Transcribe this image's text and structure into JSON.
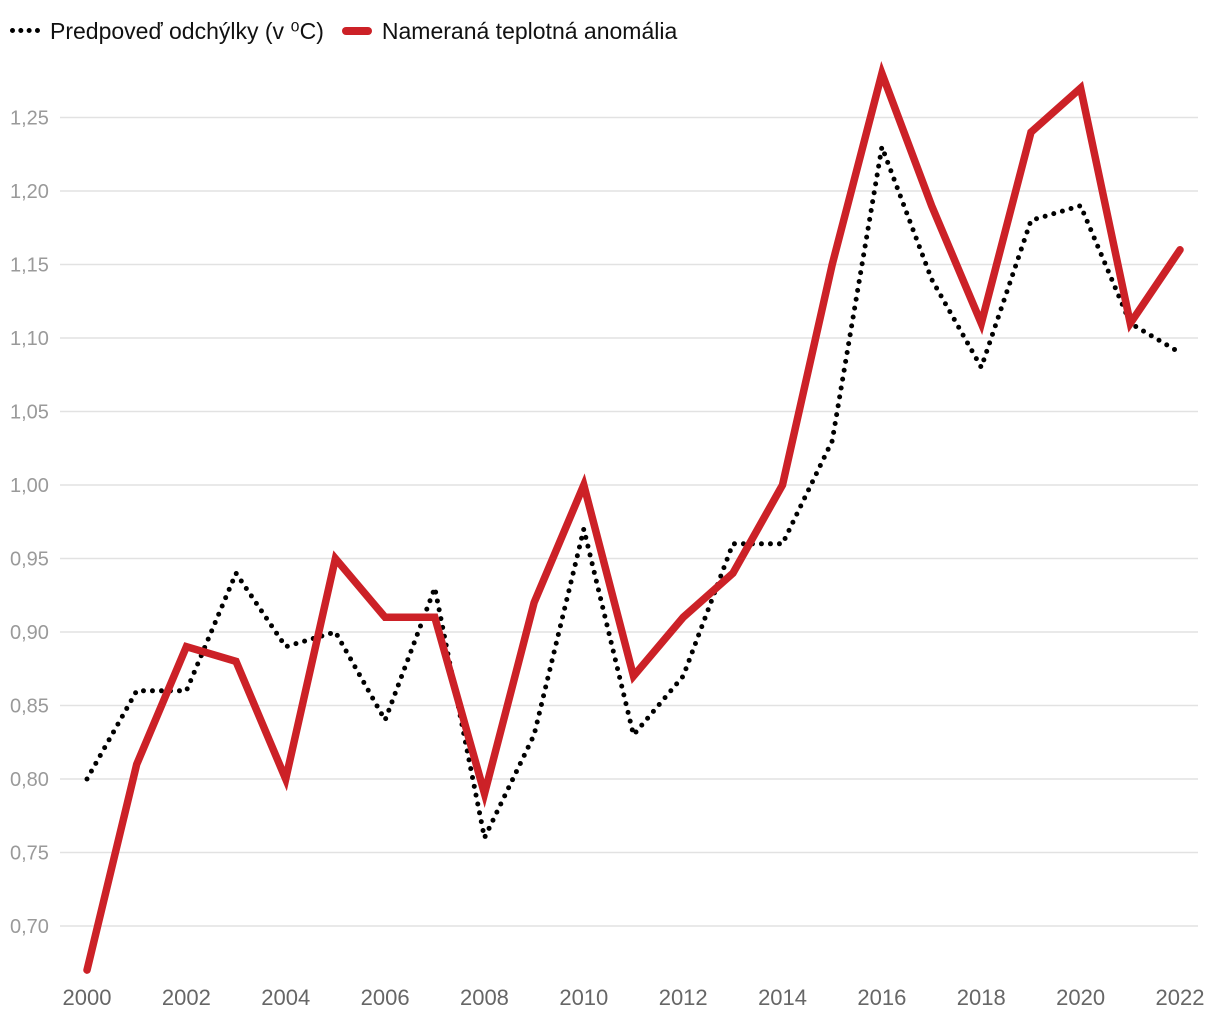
{
  "chart_data": {
    "type": "line",
    "title": "",
    "xlabel": "",
    "ylabel": "",
    "x": [
      2000,
      2001,
      2002,
      2003,
      2004,
      2005,
      2006,
      2007,
      2008,
      2009,
      2010,
      2011,
      2012,
      2013,
      2014,
      2015,
      2016,
      2017,
      2018,
      2019,
      2020,
      2021,
      2022
    ],
    "xticks": [
      "2000",
      "2002",
      "2004",
      "2006",
      "2008",
      "2010",
      "2012",
      "2014",
      "2016",
      "2018",
      "2020",
      "2022"
    ],
    "yticks": [
      "0,70",
      "0,75",
      "0,80",
      "0,85",
      "0,90",
      "0,95",
      "1,00",
      "1,05",
      "1,10",
      "1,15",
      "1,20",
      "1,25"
    ],
    "xlim": [
      2000,
      2022
    ],
    "ylim": [
      0.67,
      1.29
    ],
    "grid": "horizontal",
    "legend_position": "top-left",
    "series": [
      {
        "name": "Predpoveď odchýlky (v ⁰C)",
        "style": "dotted",
        "color": "#000000",
        "values": [
          0.8,
          0.86,
          0.86,
          0.94,
          0.89,
          0.9,
          0.84,
          0.93,
          0.76,
          0.83,
          0.97,
          0.83,
          0.87,
          0.96,
          0.96,
          1.03,
          1.23,
          1.14,
          1.08,
          1.18,
          1.19,
          1.11,
          1.09
        ]
      },
      {
        "name": "Nameraná teplotná anomália",
        "style": "solid",
        "color": "#cc2127",
        "values": [
          0.67,
          0.81,
          0.89,
          0.88,
          0.8,
          0.95,
          0.91,
          0.91,
          0.79,
          0.92,
          1.0,
          0.87,
          0.91,
          0.94,
          1.0,
          1.15,
          1.28,
          1.19,
          1.11,
          1.24,
          1.27,
          1.11,
          1.16
        ]
      }
    ]
  }
}
